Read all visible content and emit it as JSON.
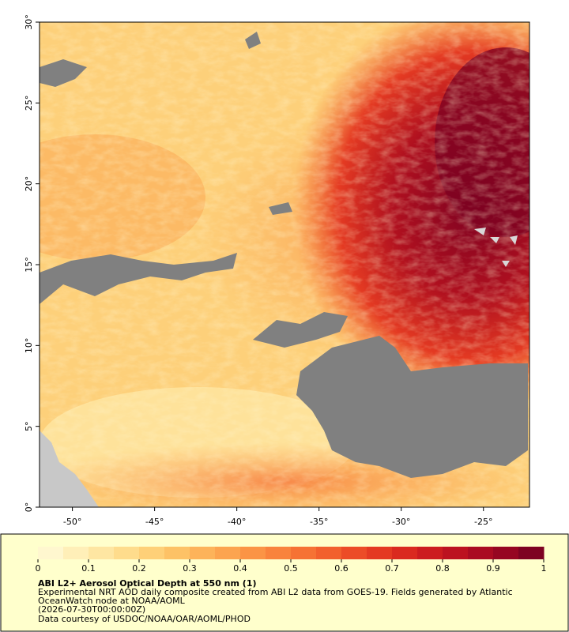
{
  "map": {
    "xlim": [
      -52,
      -22.2
    ],
    "ylim": [
      0,
      30
    ],
    "xticks": [
      {
        "value": -50,
        "label": "-50°"
      },
      {
        "value": -45,
        "label": "-45°"
      },
      {
        "value": -40,
        "label": "-40°"
      },
      {
        "value": -35,
        "label": "-35°"
      },
      {
        "value": -30,
        "label": "-30°"
      },
      {
        "value": -25,
        "label": "-25°"
      }
    ],
    "yticks": [
      {
        "value": 0,
        "label": "0°"
      },
      {
        "value": 5,
        "label": "5°"
      },
      {
        "value": 10,
        "label": "10°"
      },
      {
        "value": 15,
        "label": "15°"
      },
      {
        "value": 20,
        "label": "20°"
      },
      {
        "value": 25,
        "label": "25°"
      },
      {
        "value": 30,
        "label": "30°"
      }
    ]
  },
  "colorbar": {
    "title": "ABI L2+ Aerosol Optical Depth at 550 nm (1)",
    "clim": [
      0,
      1
    ],
    "ticks": [
      0,
      0.1,
      0.2,
      0.3,
      0.4,
      0.5,
      0.6,
      0.7,
      0.8,
      0.9,
      1
    ],
    "colors": [
      "#fff7cf",
      "#ffefb8",
      "#fee6a2",
      "#fedc8c",
      "#fed078",
      "#fdc266",
      "#fdb35a",
      "#fca44f",
      "#fb9445",
      "#f9833c",
      "#f67234",
      "#f2602d",
      "#ec4c27",
      "#e43a22",
      "#da2a1f",
      "#cc1c1f",
      "#bc1220",
      "#aa0b22",
      "#960622",
      "#7e0222"
    ]
  },
  "notes": [
    "Experimental NRT AOD daily composite created from ABI L2 data from GOES-19. Fields generated by Atlantic",
    "OceanWatch node at NOAA/AOML",
    "(2026-07-30T00:00:00Z)",
    "Data courtesy of USDOC/NOAA/OAR/AOML/PHOD"
  ]
}
